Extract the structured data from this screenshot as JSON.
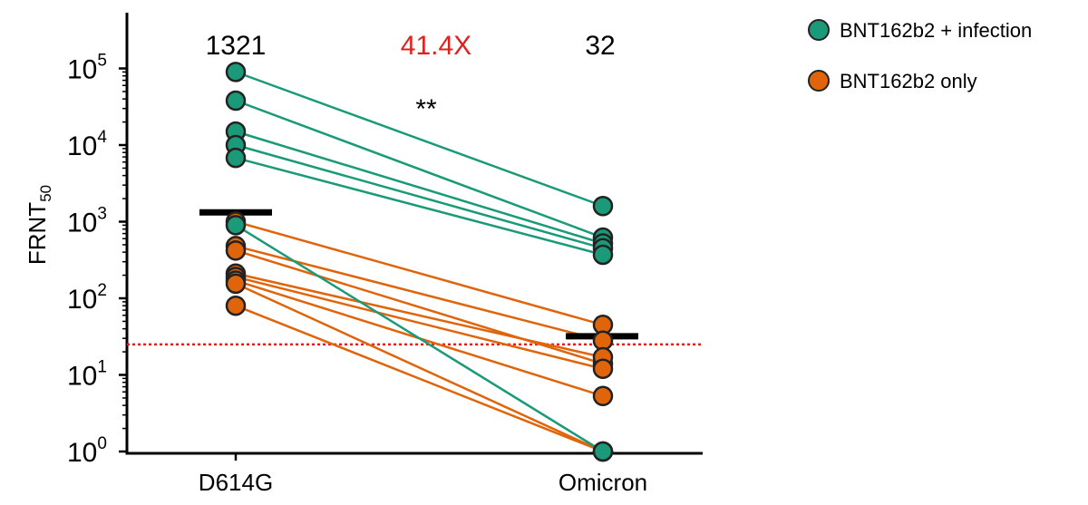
{
  "chart_data": {
    "type": "scatter",
    "categories": [
      "D614G",
      "Omicron"
    ],
    "ylabel": "FRNT",
    "ylabel_subscript": "50",
    "yscale": "log",
    "ylim": [
      1,
      500000
    ],
    "yticks": [
      {
        "base": "10",
        "exp": "0",
        "value": 1
      },
      {
        "base": "10",
        "exp": "1",
        "value": 10
      },
      {
        "base": "10",
        "exp": "2",
        "value": 100
      },
      {
        "base": "10",
        "exp": "3",
        "value": 1000
      },
      {
        "base": "10",
        "exp": "4",
        "value": 10000
      },
      {
        "base": "10",
        "exp": "5",
        "value": 100000
      }
    ],
    "threshold": {
      "value": 25,
      "color": "#dd2222"
    },
    "series": [
      {
        "name": "BNT162b2 + infection",
        "color": "#1a9a78",
        "pairs": [
          [
            90000,
            1600
          ],
          [
            38000,
            620
          ],
          [
            15000,
            520
          ],
          [
            10000,
            450
          ],
          [
            6800,
            370
          ],
          [
            900,
            1
          ]
        ]
      },
      {
        "name": "BNT162b2 only",
        "color": "#e0640a",
        "pairs": [
          [
            1000,
            45
          ],
          [
            480,
            28
          ],
          [
            420,
            14
          ],
          [
            210,
            17
          ],
          [
            190,
            12
          ],
          [
            170,
            5.3
          ],
          [
            155,
            1
          ],
          [
            80,
            1
          ]
        ]
      }
    ],
    "geometric_means": {
      "D614G": 1321,
      "Omicron": 32
    },
    "annotations": {
      "left_value": "1321",
      "fold_change": "41.4X",
      "fold_change_color": "#e0201c",
      "right_value": "32",
      "significance": "**"
    },
    "legend": {
      "placement": "top-right",
      "items": [
        {
          "label": "BNT162b2 + infection",
          "color": "#1a9a78"
        },
        {
          "label": "BNT162b2 only",
          "color": "#e0640a"
        }
      ]
    },
    "grid": false
  }
}
